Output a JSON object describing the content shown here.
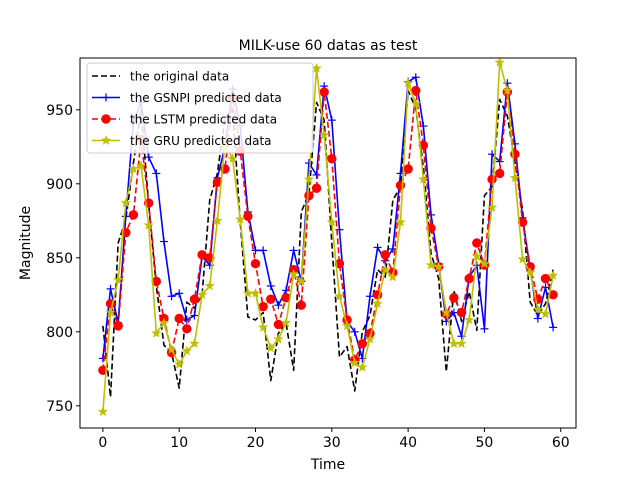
{
  "chart_data": {
    "type": "line",
    "title": "MILK-use 60 datas as test",
    "xlabel": "Time",
    "ylabel": "Magnitude",
    "xlim": [
      -3,
      62
    ],
    "ylim": [
      735,
      985
    ],
    "xticks": [
      0,
      10,
      20,
      30,
      40,
      50,
      60
    ],
    "yticks": [
      750,
      800,
      850,
      900,
      950
    ],
    "grid": false,
    "legend_position": "top-left",
    "series": [
      {
        "name": "the original data",
        "color": "#000000",
        "style": "dashed",
        "marker": "none",
        "values": [
          804,
          756,
          860,
          876,
          914,
          950,
          886,
          831,
          791,
          786,
          762,
          820,
          816,
          825,
          889,
          907,
          944,
          951,
          874,
          810,
          808,
          813,
          767,
          799,
          806,
          774,
          881,
          893,
          955,
          943,
          860,
          783,
          790,
          760,
          800,
          811,
          842,
          837,
          889,
          898,
          963,
          951,
          911,
          853,
          836,
          773,
          828,
          807,
          827,
          801,
          892,
          898,
          957,
          946,
          915,
          882,
          820,
          811,
          819,
          842
        ]
      },
      {
        "name": "the GSNPI predicted data",
        "color": "#0000ff",
        "style": "solid",
        "marker": "plus",
        "values": [
          782,
          829,
          806,
          878,
          942,
          955,
          918,
          907,
          861,
          824,
          826,
          808,
          811,
          851,
          845,
          904,
          925,
          964,
          939,
          881,
          855,
          855,
          831,
          818,
          828,
          855,
          834,
          914,
          906,
          966,
          943,
          869,
          807,
          800,
          782,
          824,
          857,
          848,
          856,
          907,
          969,
          972,
          939,
          879,
          846,
          807,
          813,
          797,
          837,
          845,
          802,
          920,
          915,
          968,
          927,
          877,
          842,
          809,
          830,
          803
        ]
      },
      {
        "name": "the LSTM predicted data",
        "color": "#ff0000",
        "style": "dashed",
        "marker": "circle",
        "values": [
          774,
          819,
          804,
          867,
          879,
          930,
          887,
          834,
          809,
          786,
          809,
          802,
          822,
          852,
          850,
          901,
          910,
          958,
          922,
          878,
          846,
          817,
          822,
          805,
          823,
          842,
          818,
          892,
          897,
          962,
          917,
          846,
          808,
          781,
          792,
          799,
          825,
          852,
          840,
          899,
          910,
          963,
          926,
          870,
          844,
          812,
          823,
          813,
          836,
          860,
          845,
          903,
          907,
          962,
          920,
          874,
          844,
          822,
          836,
          825
        ]
      },
      {
        "name": "the GRU predicted data",
        "color": "#bfbf00",
        "style": "solid",
        "marker": "star",
        "values": [
          746,
          813,
          835,
          887,
          910,
          912,
          872,
          799,
          806,
          788,
          778,
          787,
          792,
          825,
          831,
          875,
          927,
          917,
          876,
          826,
          826,
          803,
          789,
          795,
          806,
          839,
          834,
          903,
          978,
          933,
          874,
          824,
          804,
          779,
          776,
          795,
          819,
          842,
          837,
          874,
          968,
          954,
          903,
          845,
          844,
          813,
          792,
          792,
          808,
          851,
          846,
          884,
          982,
          963,
          904,
          849,
          840,
          815,
          812,
          838
        ]
      }
    ]
  }
}
